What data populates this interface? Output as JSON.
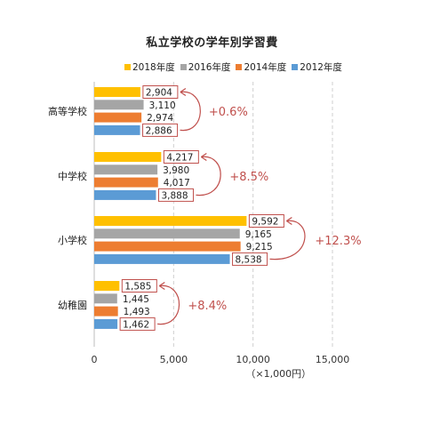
{
  "chart_data": {
    "type": "bar",
    "orientation": "horizontal",
    "title": "私立学校の学年別学習費",
    "categories": [
      "高等学校",
      "中学校",
      "小学校",
      "幼稚園"
    ],
    "series": [
      {
        "name": "2018年度",
        "color": "#FFC000",
        "values": [
          2904,
          4217,
          9592,
          1585
        ]
      },
      {
        "name": "2016年度",
        "color": "#A5A5A5",
        "values": [
          3110,
          3980,
          9165,
          1445
        ]
      },
      {
        "name": "2014年度",
        "color": "#ED7D31",
        "values": [
          2974,
          4017,
          9215,
          1493
        ]
      },
      {
        "name": "2012年度",
        "color": "#5B9BD5",
        "values": [
          2886,
          3888,
          8538,
          1462
        ]
      }
    ],
    "data_labels": [
      [
        "2,904",
        "3,110",
        "2,974",
        "2,886"
      ],
      [
        "4,217",
        "3,980",
        "4,017",
        "3,888"
      ],
      [
        "9,592",
        "9,165",
        "9,215",
        "8,538"
      ],
      [
        "1,585",
        "1,445",
        "1,493",
        "1,462"
      ]
    ],
    "growth_annotations": [
      "+0.6%",
      "+8.5%",
      "+12.3%",
      "+8.4%"
    ],
    "xlim": [
      0,
      15000
    ],
    "xticks": [
      0,
      5000,
      10000,
      15000
    ],
    "xtick_labels": [
      "0",
      "5,000",
      "10,000",
      "15,000"
    ],
    "xlabel": "（×1,000円）",
    "legend_position": "top",
    "grid": "vertical-dashed",
    "annotation_color": "#C0504D"
  }
}
